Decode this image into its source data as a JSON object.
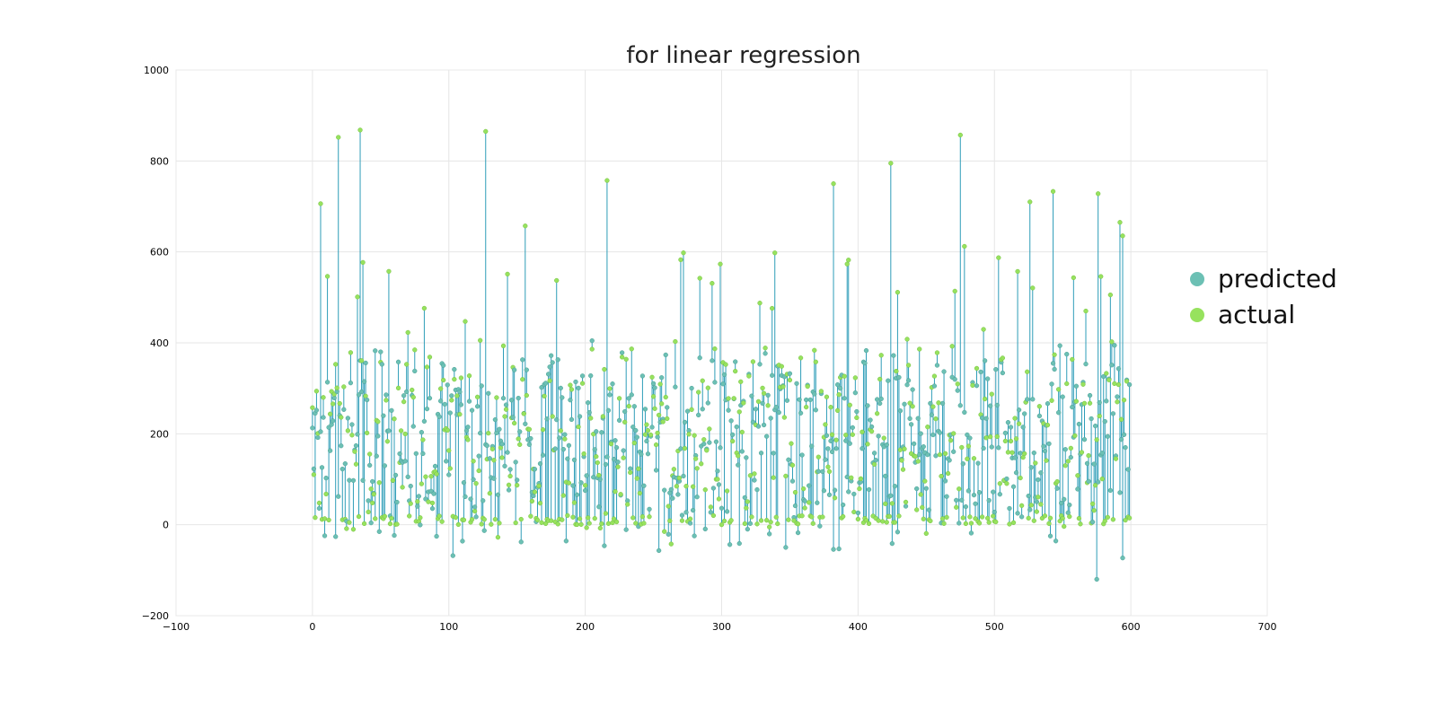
{
  "chart_data": {
    "type": "scatter",
    "title": "for linear regression",
    "xlabel": "",
    "ylabel": "",
    "xlim": [
      -100,
      700
    ],
    "ylim": [
      -200,
      1000
    ],
    "xticks": [
      -100,
      0,
      100,
      200,
      300,
      400,
      500,
      600,
      700
    ],
    "yticks": [
      -200,
      0,
      200,
      400,
      600,
      800,
      1000
    ],
    "xtick_labels": [
      "−100",
      "0",
      "100",
      "200",
      "300",
      "400",
      "500",
      "600",
      "700"
    ],
    "ytick_labels": [
      "−200",
      "0",
      "200",
      "400",
      "600",
      "800",
      "1000"
    ],
    "grid": true,
    "legend_position": "right",
    "series": [
      {
        "name": "predicted",
        "color": "#6cc0b4"
      },
      {
        "name": "actual",
        "color": "#97e25e"
      }
    ],
    "n_points": 600,
    "generated_sample_note": "individual point values approximated; 600 paired predicted/actual points connected by vertical lines",
    "line_color": "#2e9db8",
    "x_start": 0,
    "x_step": 1,
    "value_range": [
      -120,
      870
    ],
    "highlight_points": [
      {
        "x": 35,
        "actual": 868
      },
      {
        "x": 127,
        "actual": 865
      },
      {
        "x": 475,
        "actual": 857
      },
      {
        "x": 19,
        "actual": 852
      },
      {
        "x": 424,
        "actual": 795
      },
      {
        "x": 216,
        "actual": 757
      },
      {
        "x": 382,
        "actual": 750
      },
      {
        "x": 543,
        "actual": 733
      },
      {
        "x": 576,
        "actual": 728
      },
      {
        "x": 6,
        "actual": 706
      },
      {
        "x": 526,
        "actual": 710
      },
      {
        "x": 575,
        "predicted": -120
      },
      {
        "x": 103,
        "predicted": -68
      },
      {
        "x": 594,
        "predicted": -73
      }
    ]
  }
}
